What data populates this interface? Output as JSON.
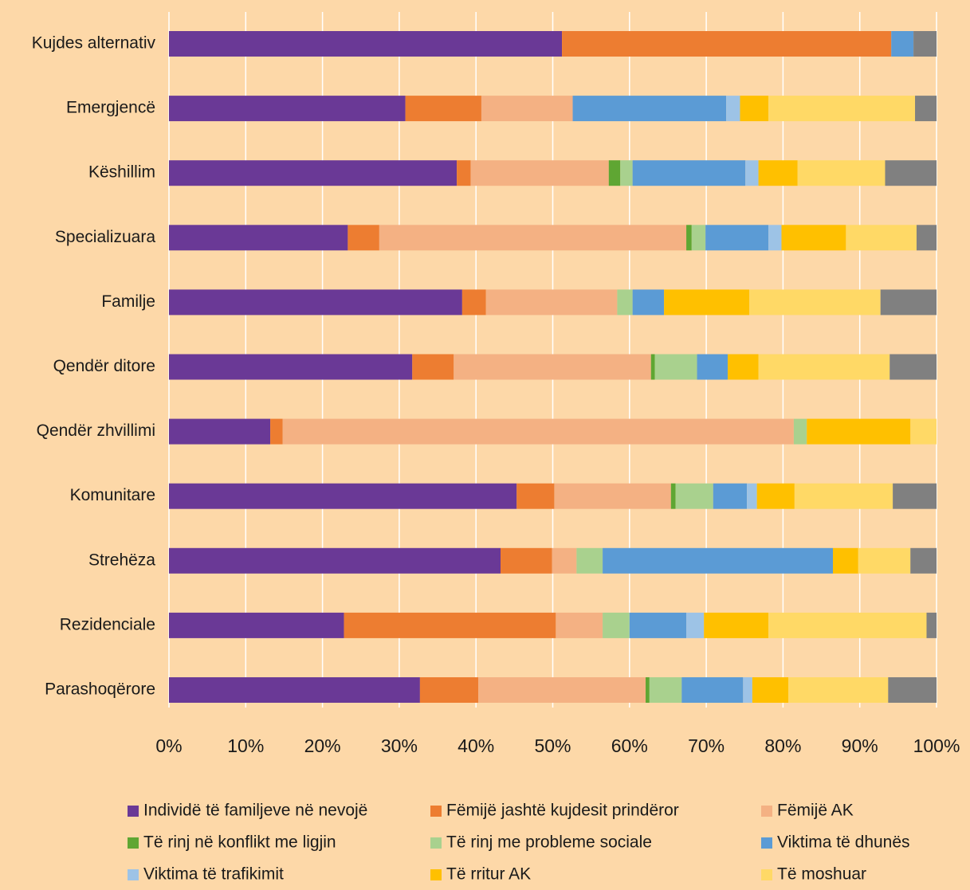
{
  "chart_data": {
    "type": "stacked-barh",
    "categories": [
      "Kujdes alternativ",
      "Emergjencë",
      "Këshillim",
      "Specializuara",
      "Familje",
      "Qendër ditore",
      "Qendër zhvillimi",
      "Komunitare",
      "Strehëza",
      "Rezidenciale",
      "Parashoqërore"
    ],
    "series": [
      {
        "name": "Individë të familjeve në nevojë",
        "color": "#6a3996",
        "values": [
          51.2,
          30.8,
          37.5,
          23.3,
          38.2,
          31.7,
          13.2,
          45.3,
          43.2,
          22.8,
          32.7
        ]
      },
      {
        "name": "Fëmijë jashtë kujdesit prindëror",
        "color": "#ed7d31",
        "values": [
          42.9,
          9.9,
          1.8,
          4.1,
          3.1,
          5.4,
          1.6,
          4.9,
          6.7,
          27.6,
          7.6
        ]
      },
      {
        "name": "Fëmijë AK",
        "color": "#f4b183",
        "values": [
          0,
          11.9,
          18.0,
          40.0,
          17.1,
          25.7,
          66.6,
          15.2,
          3.2,
          6.1,
          21.8
        ]
      },
      {
        "name": "Të rinj në konflikt me ligjin",
        "color": "#5fa633",
        "values": [
          0,
          0,
          1.5,
          0.7,
          0,
          0.5,
          0,
          0.6,
          0,
          0,
          0.5
        ]
      },
      {
        "name": "Të rinj me probleme sociale",
        "color": "#a9d18e",
        "values": [
          0,
          0,
          1.6,
          1.8,
          2.0,
          5.5,
          1.7,
          4.9,
          3.4,
          3.5,
          4.2
        ]
      },
      {
        "name": "Viktima të dhunës",
        "color": "#5b9bd5",
        "values": [
          2.9,
          20.0,
          14.7,
          8.2,
          4.1,
          4.0,
          0,
          4.4,
          30.0,
          7.4,
          8.0
        ]
      },
      {
        "name": "Viktima të trafikimit",
        "color": "#9dc3e6",
        "values": [
          0,
          1.8,
          1.7,
          1.7,
          0,
          0,
          0,
          1.3,
          0,
          2.3,
          1.2
        ]
      },
      {
        "name": "Të rritur AK",
        "color": "#ffc000",
        "values": [
          0,
          3.7,
          5.1,
          8.4,
          11.1,
          4.0,
          13.5,
          4.9,
          3.3,
          8.4,
          4.7
        ]
      },
      {
        "name": "Të moshuar",
        "color": "#ffd966",
        "values": [
          0,
          19.1,
          11.4,
          9.2,
          17.1,
          17.1,
          3.4,
          12.8,
          6.8,
          20.6,
          13.0
        ]
      },
      {
        "name": null,
        "color": "#808080",
        "values": [
          3.0,
          2.8,
          6.7,
          2.6,
          7.3,
          6.1,
          0,
          5.7,
          3.4,
          1.3,
          6.3
        ]
      }
    ],
    "xlim": [
      0,
      100
    ],
    "xticks": [
      {
        "value": 0,
        "label": "0%"
      },
      {
        "value": 10,
        "label": "10%"
      },
      {
        "value": 20,
        "label": "20%"
      },
      {
        "value": 30,
        "label": "30%"
      },
      {
        "value": 40,
        "label": "40%"
      },
      {
        "value": 50,
        "label": "50%"
      },
      {
        "value": 60,
        "label": "60%"
      },
      {
        "value": 70,
        "label": "70%"
      },
      {
        "value": 80,
        "label": "80%"
      },
      {
        "value": 90,
        "label": "90%"
      },
      {
        "value": 100,
        "label": "100%"
      }
    ],
    "grid": true,
    "legend": "bottom"
  }
}
